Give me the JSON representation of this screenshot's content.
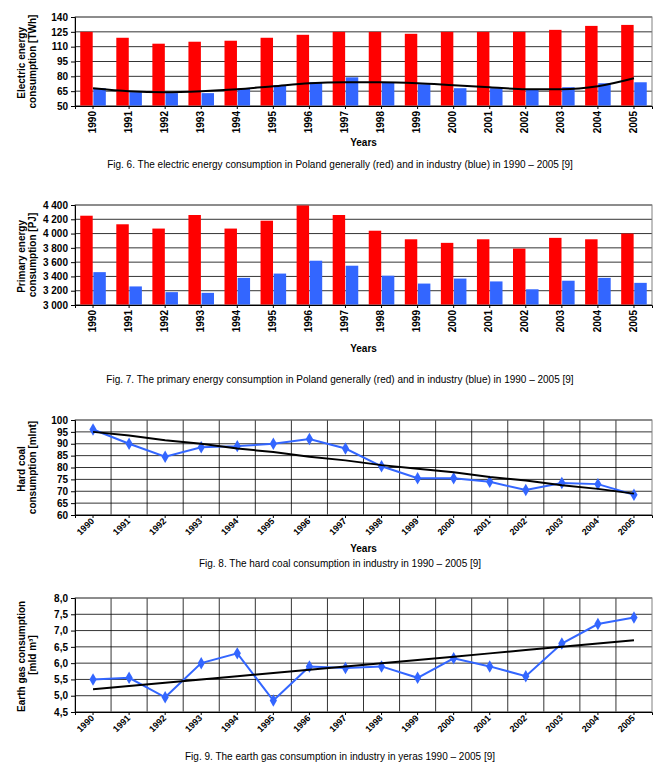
{
  "chart_data": [
    {
      "type": "bar",
      "title": "Fig. 6. The electric energy consumption in Poland generally (red) and in industry (blue) in 1990 – 2005 [9]",
      "xlabel": "Years",
      "ylabel": "Electric energy consumption [TWh]",
      "categories": [
        "1990",
        "1991",
        "1992",
        "1993",
        "1994",
        "1995",
        "1996",
        "1997",
        "1998",
        "1999",
        "2000",
        "2001",
        "2002",
        "2003",
        "2004",
        "2005"
      ],
      "series": [
        {
          "color": "#ff0000",
          "values": [
            125,
            119,
            113,
            115,
            116,
            119,
            122,
            125,
            125,
            123,
            125,
            125,
            125,
            127,
            131,
            132
          ]
        },
        {
          "color": "#3366ff",
          "values": [
            68,
            64,
            63,
            63,
            68,
            71,
            74,
            79,
            74,
            72,
            68,
            68,
            67,
            69,
            73,
            74
          ]
        },
        {
          "type": "line",
          "color": "#000000",
          "line_style": "smooth",
          "values": [
            68,
            65,
            64,
            65,
            67,
            70,
            73,
            74,
            74,
            73,
            71,
            69,
            67,
            67,
            70,
            78
          ]
        }
      ],
      "ylim": [
        50,
        140
      ],
      "yticks": [
        50,
        65,
        80,
        95,
        110,
        125,
        140
      ],
      "grid": "y"
    },
    {
      "type": "bar",
      "title": "Fig. 7. The primary energy consumption in Poland generally (red) and in industry (blue) in 1990 – 2005 [9]",
      "xlabel": "Years",
      "ylabel": "Primary energy consumption [PJ]",
      "categories": [
        "1990",
        "1991",
        "1992",
        "1993",
        "1994",
        "1995",
        "1996",
        "1997",
        "1998",
        "1999",
        "2000",
        "2001",
        "2002",
        "2003",
        "2004",
        "2005"
      ],
      "series": [
        {
          "color": "#ff0000",
          "values": [
            4250,
            4130,
            4070,
            4260,
            4070,
            4180,
            4400,
            4260,
            4040,
            3920,
            3870,
            3920,
            3790,
            3940,
            3920,
            4000
          ]
        },
        {
          "color": "#3366ff",
          "values": [
            3460,
            3260,
            3180,
            3170,
            3380,
            3440,
            3620,
            3550,
            3410,
            3300,
            3370,
            3330,
            3220,
            3340,
            3380,
            3310
          ]
        }
      ],
      "ylim": [
        3000,
        4400
      ],
      "yticks": [
        {
          "value": 3000,
          "label": "3 000"
        },
        {
          "value": 3200,
          "label": "3 200"
        },
        {
          "value": 3400,
          "label": "3 400"
        },
        {
          "value": 3600,
          "label": "3 600"
        },
        {
          "value": 3800,
          "label": "3 800"
        },
        {
          "value": 4000,
          "label": "4 000"
        },
        {
          "value": 4200,
          "label": "4 200"
        },
        {
          "value": 4400,
          "label": "4 400"
        }
      ],
      "grid": "y"
    },
    {
      "type": "line",
      "title": "Fig. 8. The hard coal consumption in industry in 1990 – 2005 [9]",
      "xlabel": "Years",
      "ylabel": "Hard coal consumption [mlnt]",
      "categories": [
        "1990",
        "1991",
        "1992",
        "1993",
        "1994",
        "1995",
        "1996",
        "1997",
        "1998",
        "1999",
        "2000",
        "2001",
        "2002",
        "2003",
        "2004",
        "2005"
      ],
      "series": [
        {
          "color": "#3366ff",
          "marker": "diamond",
          "values": [
            96,
            90,
            84.5,
            88.5,
            89,
            90,
            92,
            88,
            80.5,
            75.5,
            75.5,
            74,
            70.5,
            73.5,
            73,
            68.5
          ]
        },
        {
          "color": "#000000",
          "values": [
            95,
            93.5,
            91.5,
            90,
            88,
            86.5,
            84.5,
            83,
            81,
            79.5,
            78,
            76,
            74.5,
            72.5,
            71,
            69
          ]
        }
      ],
      "ylim": [
        60,
        100
      ],
      "yticks": [
        60,
        65,
        70,
        75,
        80,
        85,
        90,
        95,
        100
      ],
      "grid": true
    },
    {
      "type": "line",
      "title": "Fig. 9. The earth gas consumption in industry in yeras 1990 – 2005 [9]",
      "ylabel": "Earth gas consumption [mld m³]",
      "categories": [
        "1990",
        "1991",
        "1992",
        "1993",
        "1994",
        "1995",
        "1996",
        "1997",
        "1998",
        "1999",
        "2000",
        "2001",
        "2002",
        "2003",
        "2004",
        "2005"
      ],
      "series": [
        {
          "color": "#3366ff",
          "marker": "diamond",
          "values": [
            5.5,
            5.55,
            4.95,
            6.0,
            6.3,
            4.85,
            5.9,
            5.85,
            5.9,
            5.55,
            6.15,
            5.9,
            5.6,
            6.6,
            7.2,
            7.4
          ]
        },
        {
          "color": "#000000",
          "values": [
            5.2,
            5.3,
            5.4,
            5.5,
            5.6,
            5.7,
            5.8,
            5.9,
            6.0,
            6.1,
            6.2,
            6.3,
            6.4,
            6.5,
            6.6,
            6.7
          ]
        }
      ],
      "ylim": [
        4.5,
        8.0
      ],
      "yticks": [
        {
          "value": 4.5,
          "label": "4,5"
        },
        {
          "value": 5,
          "label": "5,0"
        },
        {
          "value": 5.5,
          "label": "5,5"
        },
        {
          "value": 6,
          "label": "6,0"
        },
        {
          "value": 6.5,
          "label": "6,5"
        },
        {
          "value": 7,
          "label": "7,0"
        },
        {
          "value": 7.5,
          "label": "7,5"
        },
        {
          "value": 8,
          "label": "8,0"
        }
      ],
      "grid": true
    }
  ]
}
